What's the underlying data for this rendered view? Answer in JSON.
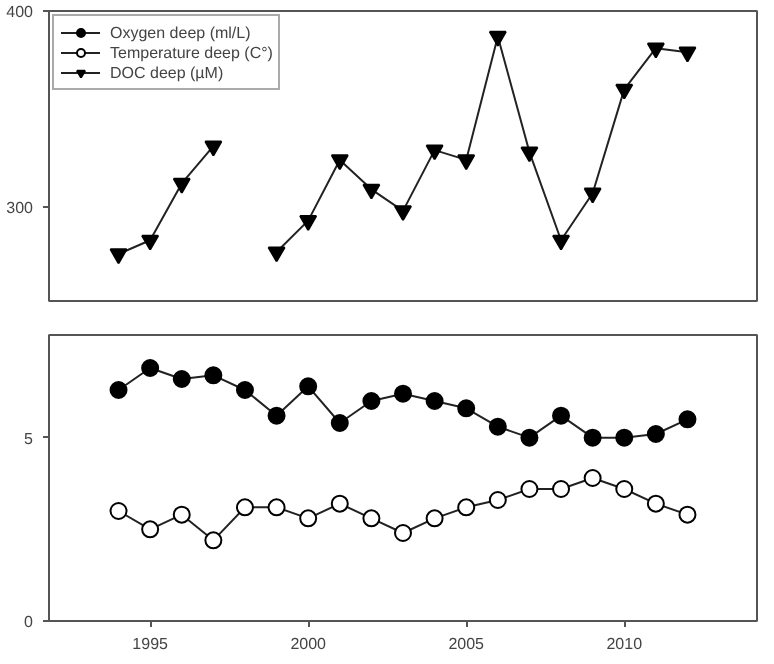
{
  "chart_data": [
    {
      "type": "line",
      "x": [
        1994,
        1995,
        1996,
        1997,
        1998,
        1999,
        2000,
        2001,
        2002,
        2003,
        2004,
        2005,
        2006,
        2007,
        2008,
        2009,
        2010,
        2011,
        2012
      ],
      "xlim": [
        1991.8,
        2014.2
      ],
      "ylim": [
        252,
        400
      ],
      "yticks": [
        300,
        400
      ],
      "tick_labels": "y",
      "legend": "top left",
      "grid": false,
      "series": [
        {
          "name": "DOC deep (µM)",
          "color": "#000000",
          "marker": "triangle",
          "values": [
            276,
            283,
            312,
            331,
            null,
            277,
            293,
            324,
            309,
            298,
            329,
            324,
            387,
            328,
            283,
            307,
            360,
            381,
            379
          ]
        }
      ]
    },
    {
      "type": "line",
      "x": [
        1994,
        1995,
        1996,
        1997,
        1998,
        1999,
        2000,
        2001,
        2002,
        2003,
        2004,
        2005,
        2006,
        2007,
        2008,
        2009,
        2010,
        2011,
        2012
      ],
      "xlim": [
        1991.8,
        2014.2
      ],
      "xticks": [
        1995,
        2000,
        2005,
        2010
      ],
      "ylim": [
        0,
        7.8
      ],
      "yticks": [
        0,
        5
      ],
      "grid": false,
      "legend": "top left",
      "series": [
        {
          "name": "Oxygen deep (ml/L)",
          "color": "#000000",
          "marker": "circle",
          "values": [
            6.3,
            6.9,
            6.6,
            6.7,
            6.3,
            5.6,
            6.4,
            5.4,
            6.0,
            6.2,
            6.0,
            5.8,
            5.3,
            5.0,
            5.6,
            5.0,
            5.0,
            5.1,
            5.5
          ]
        },
        {
          "name": "Temperature deep (C°)",
          "color": "#ffffff",
          "marker": "circle",
          "values": [
            3.0,
            2.5,
            2.9,
            2.2,
            3.1,
            3.1,
            2.8,
            3.2,
            2.8,
            2.4,
            2.8,
            3.1,
            3.3,
            3.6,
            3.6,
            3.9,
            3.6,
            3.2,
            2.9
          ]
        }
      ]
    }
  ]
}
